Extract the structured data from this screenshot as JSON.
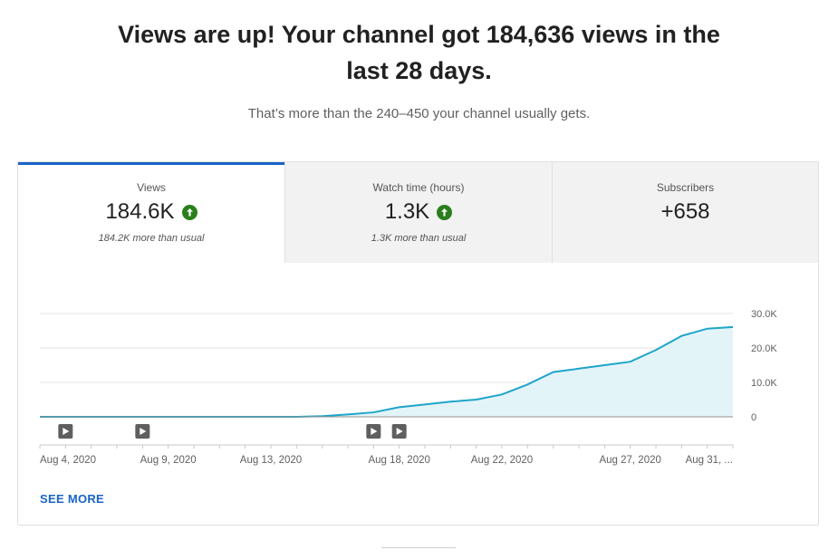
{
  "headline": {
    "line1": "Views are up! Your channel got 184,636 views in the",
    "line2": "last 28 days."
  },
  "subline": "That’s more than the 240–450 your channel usually gets.",
  "tabs": [
    {
      "label": "Views",
      "value": "184.6K",
      "note": "184.2K more than usual",
      "trend_icon": "arrow-up-icon"
    },
    {
      "label": "Watch time (hours)",
      "value": "1.3K",
      "note": "1.3K more than usual",
      "trend_icon": "arrow-up-icon"
    },
    {
      "label": "Subscribers",
      "value": "+658",
      "note": ""
    }
  ],
  "colors": {
    "accent": "#1a64c8",
    "trend_up": "#2a7f1c",
    "line": "#1ea5c9",
    "area": "#e3f4f9"
  },
  "see_more_label": "SEE MORE",
  "chart_data": {
    "type": "area",
    "x_tick_labels": [
      "Aug 4, 2020",
      "Aug 9, 2020",
      "Aug 13, 2020",
      "Aug 18, 2020",
      "Aug 22, 2020",
      "Aug 27, 2020",
      "Aug 31, ..."
    ],
    "y_tick_labels": [
      "30.0K",
      "20.0K",
      "10.0K",
      "0"
    ],
    "ylim": [
      0,
      30000
    ],
    "grid": true,
    "x": [
      "Aug 4",
      "Aug 5",
      "Aug 6",
      "Aug 7",
      "Aug 8",
      "Aug 9",
      "Aug 10",
      "Aug 11",
      "Aug 12",
      "Aug 13",
      "Aug 14",
      "Aug 15",
      "Aug 16",
      "Aug 17",
      "Aug 18",
      "Aug 19",
      "Aug 20",
      "Aug 21",
      "Aug 22",
      "Aug 23",
      "Aug 24",
      "Aug 25",
      "Aug 26",
      "Aug 27",
      "Aug 28",
      "Aug 29",
      "Aug 30",
      "Aug 31"
    ],
    "series": [
      {
        "values": [
          0,
          0,
          0,
          0,
          0,
          0,
          0,
          0,
          0,
          0,
          0,
          200,
          700,
          1300,
          2800,
          3600,
          4400,
          5000,
          6500,
          9400,
          13000,
          14000,
          15000,
          16000,
          19400,
          23500,
          25600,
          26100
        ]
      }
    ],
    "video_markers": [
      "Aug 5",
      "Aug 8",
      "Aug 17",
      "Aug 18"
    ]
  }
}
